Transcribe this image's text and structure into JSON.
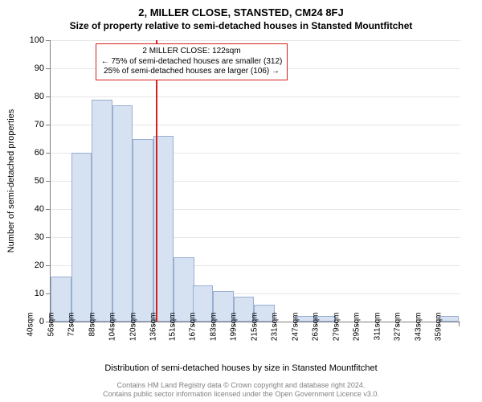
{
  "title_line1": "2, MILLER CLOSE, STANSTED, CM24 8FJ",
  "title_line2": "Size of property relative to semi-detached houses in Stansted Mountfitchet",
  "y_axis_title": "Number of semi-detached properties",
  "x_axis_title": "Distribution of semi-detached houses by size in Stansted Mountfitchet",
  "footer_line1": "Contains HM Land Registry data © Crown copyright and database right 2024.",
  "footer_line2": "Contains public sector information licensed under the Open Government Licence v3.0.",
  "chart": {
    "type": "histogram",
    "ylim": [
      0,
      100
    ],
    "ytick_step": 10,
    "xlim": [
      40,
      360
    ],
    "bin_width": 16,
    "x_ticks": [
      40,
      56,
      72,
      88,
      104,
      120,
      136,
      151,
      167,
      183,
      199,
      215,
      231,
      247,
      263,
      279,
      295,
      311,
      327,
      343,
      359
    ],
    "x_tick_suffix": "sqm",
    "bar_fill": "#d6e2f2",
    "bar_stroke": "#9aaed0",
    "grid_color": "#e6e6e6",
    "axis_color": "#808080",
    "bins": [
      {
        "start": 40,
        "count": 16
      },
      {
        "start": 56,
        "count": 60
      },
      {
        "start": 72,
        "count": 79
      },
      {
        "start": 88,
        "count": 77
      },
      {
        "start": 104,
        "count": 65
      },
      {
        "start": 120,
        "count": 66
      },
      {
        "start": 136,
        "count": 23
      },
      {
        "start": 151,
        "count": 13
      },
      {
        "start": 167,
        "count": 11
      },
      {
        "start": 183,
        "count": 9
      },
      {
        "start": 199,
        "count": 6
      },
      {
        "start": 215,
        "count": 0
      },
      {
        "start": 231,
        "count": 2
      },
      {
        "start": 247,
        "count": 2
      },
      {
        "start": 263,
        "count": 0
      },
      {
        "start": 279,
        "count": 0
      },
      {
        "start": 295,
        "count": 0
      },
      {
        "start": 311,
        "count": 0
      },
      {
        "start": 327,
        "count": 0
      },
      {
        "start": 343,
        "count": 2
      }
    ],
    "reference": {
      "value": 122,
      "color": "#d62020",
      "callout": {
        "line1": "2 MILLER CLOSE: 122sqm",
        "line2": "← 75% of semi-detached houses are smaller (312)",
        "line3": "25% of semi-detached houses are larger (106) →"
      }
    }
  }
}
